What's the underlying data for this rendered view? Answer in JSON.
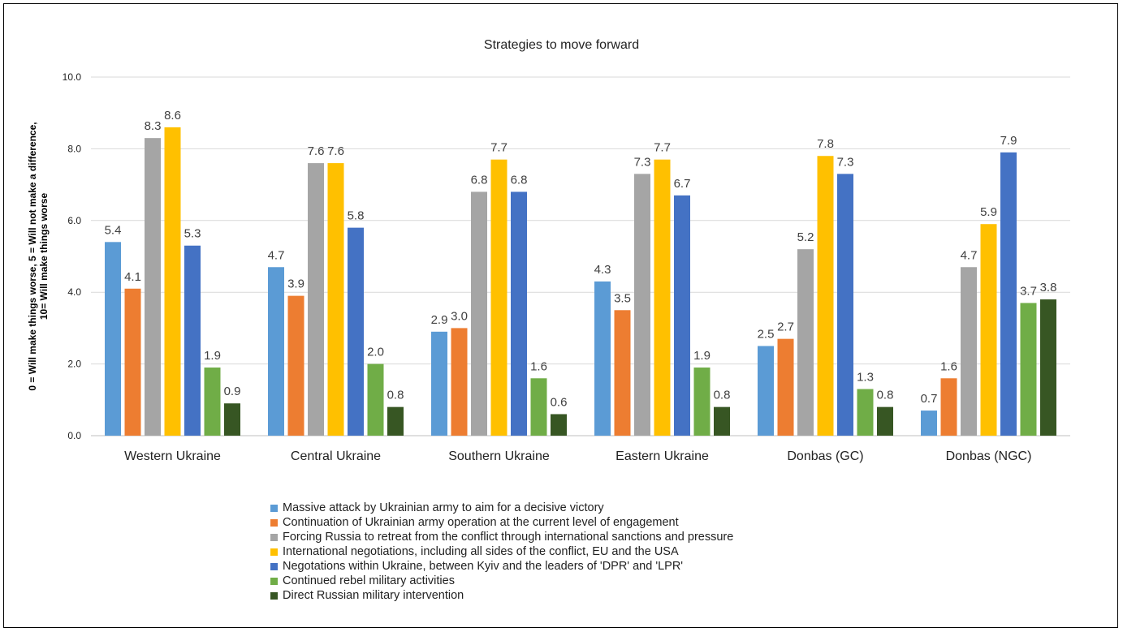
{
  "chart_data": {
    "type": "bar",
    "title": "Strategies to move forward",
    "ylabel": "0 = Will make things worse, 5 = Will not make a difference, 10= Will make things worse",
    "ylabel_lines": [
      "0 = Will make things worse, 5 = Will not make a difference,",
      "10= Will make things worse"
    ],
    "xlabel": "",
    "ylim": [
      0,
      10
    ],
    "yticks": [
      "0.0",
      "2.0",
      "4.0",
      "6.0",
      "8.0",
      "10.0"
    ],
    "grid": true,
    "legend_position": "bottom",
    "categories": [
      "Western Ukraine",
      "Central Ukraine",
      "Southern Ukraine",
      "Eastern Ukraine",
      "Donbas (GC)",
      "Donbas (NGC)"
    ],
    "series": [
      {
        "name": "Massive attack by Ukrainian army to aim for a decisive victory",
        "color": "#5B9BD5",
        "values": [
          5.4,
          4.7,
          2.9,
          4.3,
          2.5,
          0.7
        ]
      },
      {
        "name": "Continuation of Ukrainian army operation at the current level of engagement",
        "color": "#ED7D31",
        "values": [
          4.1,
          3.9,
          3.0,
          3.5,
          2.7,
          1.6
        ]
      },
      {
        "name": "Forcing Russia to retreat from the conflict through international sanctions and pressure",
        "color": "#A5A5A5",
        "values": [
          8.3,
          7.6,
          6.8,
          7.3,
          5.2,
          4.7
        ]
      },
      {
        "name": "International negotiations, including all sides of the conflict, EU and the USA",
        "color": "#FFC000",
        "values": [
          8.6,
          7.6,
          7.7,
          7.7,
          7.8,
          5.9
        ]
      },
      {
        "name": "Negotations within Ukraine, between Kyiv and the leaders of 'DPR' and 'LPR'",
        "color": "#4472C4",
        "values": [
          5.3,
          5.8,
          6.8,
          6.7,
          7.3,
          7.9
        ]
      },
      {
        "name": "Continued rebel military activities",
        "color": "#70AD47",
        "values": [
          1.9,
          2.0,
          1.6,
          1.9,
          1.3,
          3.7
        ]
      },
      {
        "name": "Direct Russian military intervention",
        "color": "#375623",
        "values": [
          0.9,
          0.8,
          0.6,
          0.8,
          0.8,
          3.8
        ]
      }
    ]
  }
}
